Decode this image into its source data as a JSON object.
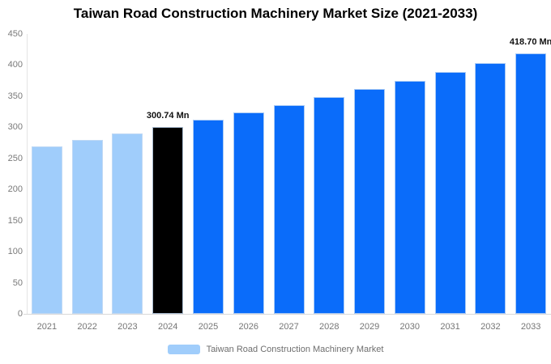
{
  "chart_data": {
    "type": "bar",
    "title": "Taiwan Road Construction Machinery Market Size (2021-2033)",
    "categories": [
      "2021",
      "2022",
      "2023",
      "2024",
      "2025",
      "2026",
      "2027",
      "2028",
      "2029",
      "2030",
      "2031",
      "2032",
      "2033"
    ],
    "series": [
      {
        "name": "Taiwan Road Construction Machinery Market",
        "values": [
          269.3,
          279.4,
          289.9,
          300.74,
          312.0,
          323.7,
          335.8,
          348.4,
          361.4,
          374.9,
          388.9,
          403.5,
          418.7
        ]
      }
    ],
    "unit": "Mn",
    "xlabel": "",
    "ylabel": "",
    "ylim": [
      0,
      450
    ],
    "y_ticks": [
      0,
      50,
      100,
      150,
      200,
      250,
      300,
      350,
      400,
      450
    ],
    "grid": false,
    "legend_position": "bottom",
    "annotations": [
      {
        "category": "2024",
        "text": "300.74 Mn"
      },
      {
        "category": "2033",
        "text": "418.70 Mn"
      }
    ],
    "bar_colors": [
      "#A0CDFB",
      "#A0CDFB",
      "#A0CDFB",
      "#000000",
      "#0A6CFA",
      "#0A6CFA",
      "#0A6CFA",
      "#0A6CFA",
      "#0A6CFA",
      "#0A6CFA",
      "#0A6CFA",
      "#0A6CFA",
      "#0A6CFA"
    ],
    "palette": {
      "historical": "#A0CDFB",
      "highlight": "#000000",
      "forecast": "#0A6CFA"
    }
  },
  "legend": {
    "label": "Taiwan Road Construction Machinery Market",
    "swatch_color": "#A0CDFB"
  }
}
